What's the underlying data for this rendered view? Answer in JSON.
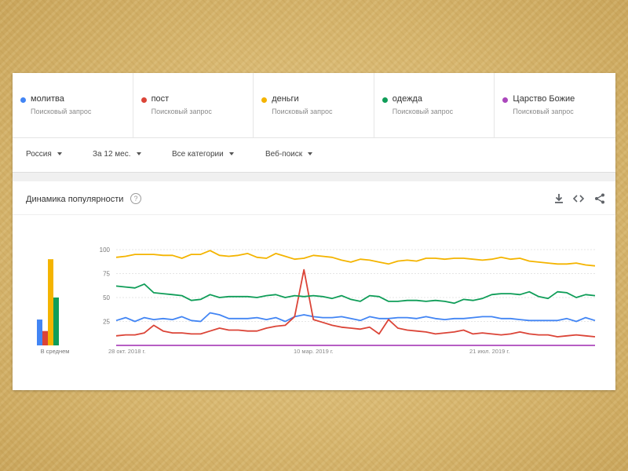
{
  "terms": [
    {
      "name": "молитва",
      "sub": "Поисковый запрос",
      "color": "#4285f4"
    },
    {
      "name": "пост",
      "sub": "Поисковый запрос",
      "color": "#db4437"
    },
    {
      "name": "деньги",
      "sub": "Поисковый запрос",
      "color": "#f4b400"
    },
    {
      "name": "одежда",
      "sub": "Поисковый запрос",
      "color": "#0f9d58"
    },
    {
      "name": "Царство Божие",
      "sub": "Поисковый запрос",
      "color": "#ab47bc"
    }
  ],
  "filters": {
    "region": "Россия",
    "period": "За 12 мес.",
    "category": "Все категории",
    "search_type": "Веб-поиск"
  },
  "card": {
    "title": "Динамика популярности",
    "help": "?"
  },
  "icons": {
    "download": "download-icon",
    "embed": "embed-icon",
    "share": "share-icon"
  },
  "chart_data": {
    "type": "line",
    "title": "Динамика популярности",
    "ylim": [
      0,
      100
    ],
    "y_ticks": [
      "100",
      "75",
      "50",
      "25"
    ],
    "x_ticks": [
      "28 окт. 2018 г.",
      "10 мар. 2019 г.",
      "21 июл. 2019 г."
    ],
    "grid": true,
    "average_label": "В среднем",
    "averages": [
      {
        "name": "молитва",
        "value": 27
      },
      {
        "name": "пост",
        "value": 15
      },
      {
        "name": "деньги",
        "value": 90
      },
      {
        "name": "одежда",
        "value": 50
      },
      {
        "name": "Царство Божие",
        "value": 0
      }
    ],
    "series": [
      {
        "name": "молитва",
        "color": "#4285f4",
        "values": [
          26,
          29,
          25,
          29,
          27,
          28,
          27,
          30,
          26,
          25,
          34,
          32,
          28,
          28,
          28,
          29,
          27,
          29,
          25,
          30,
          32,
          30,
          29,
          29,
          30,
          28,
          26,
          30,
          28,
          28,
          29,
          29,
          28,
          30,
          28,
          27,
          28,
          28,
          29,
          30,
          30,
          28,
          28,
          27,
          26,
          26,
          26,
          26,
          28,
          25,
          29,
          26
        ]
      },
      {
        "name": "пост",
        "color": "#db4437",
        "values": [
          10,
          11,
          11,
          13,
          21,
          15,
          13,
          13,
          12,
          12,
          15,
          18,
          16,
          16,
          15,
          15,
          18,
          20,
          21,
          30,
          79,
          27,
          24,
          21,
          19,
          18,
          17,
          19,
          12,
          27,
          18,
          16,
          15,
          14,
          12,
          13,
          14,
          16,
          12,
          13,
          12,
          11,
          12,
          14,
          12,
          11,
          11,
          9,
          10,
          11,
          10,
          9
        ]
      },
      {
        "name": "деньги",
        "color": "#f4b400",
        "values": [
          92,
          93,
          95,
          95,
          95,
          94,
          94,
          91,
          95,
          95,
          99,
          94,
          93,
          94,
          96,
          92,
          91,
          96,
          93,
          90,
          91,
          94,
          93,
          92,
          89,
          87,
          90,
          89,
          87,
          85,
          88,
          89,
          88,
          91,
          91,
          90,
          91,
          91,
          90,
          89,
          90,
          92,
          90,
          91,
          88,
          87,
          86,
          85,
          85,
          86,
          84,
          83
        ]
      },
      {
        "name": "одежда",
        "color": "#0f9d58",
        "values": [
          62,
          61,
          60,
          64,
          55,
          54,
          53,
          52,
          47,
          48,
          53,
          50,
          51,
          51,
          51,
          50,
          52,
          53,
          50,
          52,
          51,
          52,
          51,
          49,
          52,
          48,
          46,
          52,
          51,
          46,
          46,
          47,
          47,
          46,
          47,
          46,
          44,
          48,
          47,
          49,
          53,
          54,
          54,
          53,
          56,
          51,
          49,
          56,
          55,
          50,
          53,
          52
        ]
      },
      {
        "name": "Царство Божие",
        "color": "#ab47bc",
        "values": [
          0,
          0,
          0,
          0,
          0,
          0,
          0,
          0,
          0,
          0,
          0,
          0,
          0,
          0,
          0,
          0,
          0,
          0,
          0,
          0,
          0,
          0,
          0,
          0,
          0,
          0,
          0,
          0,
          0,
          0,
          0,
          0,
          0,
          0,
          0,
          0,
          0,
          0,
          0,
          0,
          0,
          0,
          0,
          0,
          0,
          0,
          0,
          0,
          0,
          0,
          0,
          0
        ]
      }
    ]
  }
}
